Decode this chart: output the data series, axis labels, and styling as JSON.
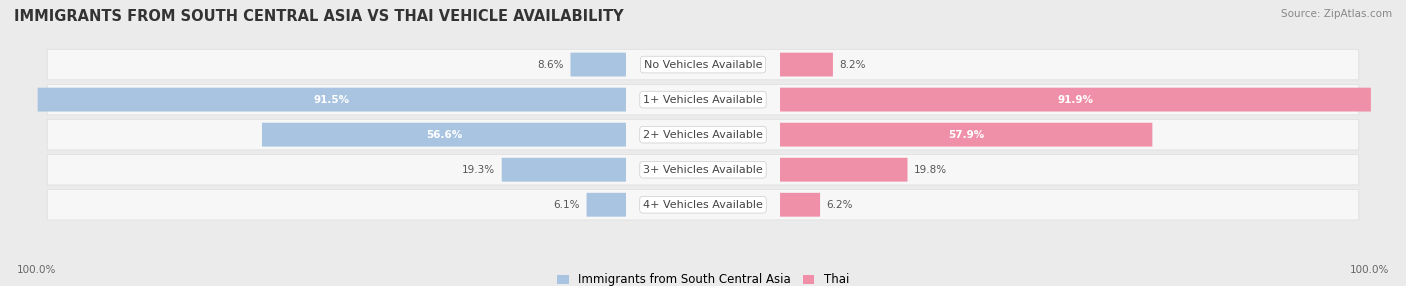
{
  "title": "IMMIGRANTS FROM SOUTH CENTRAL ASIA VS THAI VEHICLE AVAILABILITY",
  "source": "Source: ZipAtlas.com",
  "categories": [
    "No Vehicles Available",
    "1+ Vehicles Available",
    "2+ Vehicles Available",
    "3+ Vehicles Available",
    "4+ Vehicles Available"
  ],
  "blue_values": [
    8.6,
    91.5,
    56.6,
    19.3,
    6.1
  ],
  "pink_values": [
    8.2,
    91.9,
    57.9,
    19.8,
    6.2
  ],
  "blue_color": "#a8c4e0",
  "pink_color": "#f090a8",
  "blue_label": "Immigrants from South Central Asia",
  "pink_label": "Thai",
  "bg_color": "#ebebeb",
  "row_bg_color": "#f7f7f7",
  "max_value": 100.0,
  "title_fontsize": 10.5,
  "cat_fontsize": 8.0,
  "value_fontsize": 7.5,
  "legend_fontsize": 8.5,
  "source_fontsize": 7.5
}
